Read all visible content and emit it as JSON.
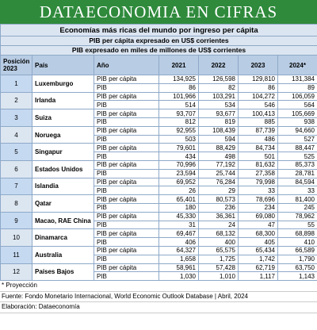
{
  "header": {
    "title": "DATAECONOMIA EN CIFRAS"
  },
  "table": {
    "title": "Economías más ricas del mundo por ingreso per cápita",
    "subtitles": [
      "PIB per cápita expresado en US$ corrientes",
      "PIB expresado en miles de millones de US$ corrientes"
    ],
    "columns": [
      "Posición 2023",
      "País",
      "Año",
      "2021",
      "2022",
      "2023",
      "2024*"
    ],
    "rows": [
      {
        "position": "1",
        "country": "Luxemburgo",
        "metrics": [
          {
            "label": "PIB per cápita",
            "values": [
              "134,925",
              "126,598",
              "129,810",
              "131,384"
            ]
          },
          {
            "label": "PIB",
            "values": [
              "86",
              "82",
              "86",
              "89"
            ]
          }
        ]
      },
      {
        "position": "2",
        "country": "Irlanda",
        "metrics": [
          {
            "label": "PIB per cápita",
            "values": [
              "101,966",
              "103,291",
              "104,272",
              "106,059"
            ]
          },
          {
            "label": "PIB",
            "values": [
              "514",
              "534",
              "546",
              "564"
            ]
          }
        ]
      },
      {
        "position": "3",
        "country": "Suiza",
        "metrics": [
          {
            "label": "PIB per cápita",
            "values": [
              "93,707",
              "93,677",
              "100,413",
              "105,669"
            ]
          },
          {
            "label": "PIB",
            "values": [
              "812",
              "819",
              "885",
              "938"
            ]
          }
        ]
      },
      {
        "position": "4",
        "country": "Noruega",
        "metrics": [
          {
            "label": "PIB per cápita",
            "values": [
              "92,955",
              "108,439",
              "87,739",
              "94,660"
            ]
          },
          {
            "label": "PIB",
            "values": [
              "503",
              "594",
              "486",
              "527"
            ]
          }
        ]
      },
      {
        "position": "5",
        "country": "Singapur",
        "metrics": [
          {
            "label": "PIB per cápita",
            "values": [
              "79,601",
              "88,429",
              "84,734",
              "88,447"
            ]
          },
          {
            "label": "PIB",
            "values": [
              "434",
              "498",
              "501",
              "525"
            ]
          }
        ]
      },
      {
        "position": "6",
        "country": "Estados Unidos",
        "metrics": [
          {
            "label": "PIB per cápita",
            "values": [
              "70,996",
              "77,192",
              "81,632",
              "85,373"
            ]
          },
          {
            "label": "PIB",
            "values": [
              "23,594",
              "25,744",
              "27,358",
              "28,781"
            ]
          }
        ]
      },
      {
        "position": "7",
        "country": "Islandia",
        "metrics": [
          {
            "label": "PIB per cápita",
            "values": [
              "69,952",
              "76,284",
              "79,998",
              "84,594"
            ]
          },
          {
            "label": "PIB",
            "values": [
              "26",
              "29",
              "33",
              "33"
            ]
          }
        ]
      },
      {
        "position": "8",
        "country": "Qatar",
        "metrics": [
          {
            "label": "PIB per cápita",
            "values": [
              "65,401",
              "80,573",
              "78,696",
              "81,400"
            ]
          },
          {
            "label": "PIB",
            "values": [
              "180",
              "236",
              "234",
              "245"
            ]
          }
        ]
      },
      {
        "position": "9",
        "country": "Macao, RAE China",
        "metrics": [
          {
            "label": "PIB per cápita",
            "values": [
              "45,330",
              "36,361",
              "69,080",
              "78,962"
            ]
          },
          {
            "label": "PIB",
            "values": [
              "31",
              "24",
              "47",
              "55"
            ]
          }
        ]
      },
      {
        "position": "10",
        "country": "Dinamarca",
        "metrics": [
          {
            "label": "PIB per cápita",
            "values": [
              "69,467",
              "68,132",
              "68,300",
              "68,898"
            ]
          },
          {
            "label": "PIB",
            "values": [
              "406",
              "400",
              "405",
              "410"
            ]
          }
        ]
      },
      {
        "position": "11",
        "country": "Australia",
        "metrics": [
          {
            "label": "PIB per cápita",
            "values": [
              "64,327",
              "65,575",
              "65,434",
              "66,589"
            ]
          },
          {
            "label": "PIB",
            "values": [
              "1,658",
              "1,725",
              "1,742",
              "1,790"
            ]
          }
        ]
      },
      {
        "position": "12",
        "country": "Países Bajos",
        "metrics": [
          {
            "label": "PIB per cápita",
            "values": [
              "58,961",
              "57,428",
              "62,719",
              "63,750"
            ]
          },
          {
            "label": "PIB",
            "values": [
              "1,030",
              "1,010",
              "1,117",
              "1,143"
            ]
          }
        ]
      }
    ]
  },
  "footer": {
    "note": "* Proyección",
    "source": "Fuente: Fondo Monetario Internacional, World Economic Outlook Database | Abril, 2024",
    "credit": "Elaboración: Dataeconomía"
  }
}
